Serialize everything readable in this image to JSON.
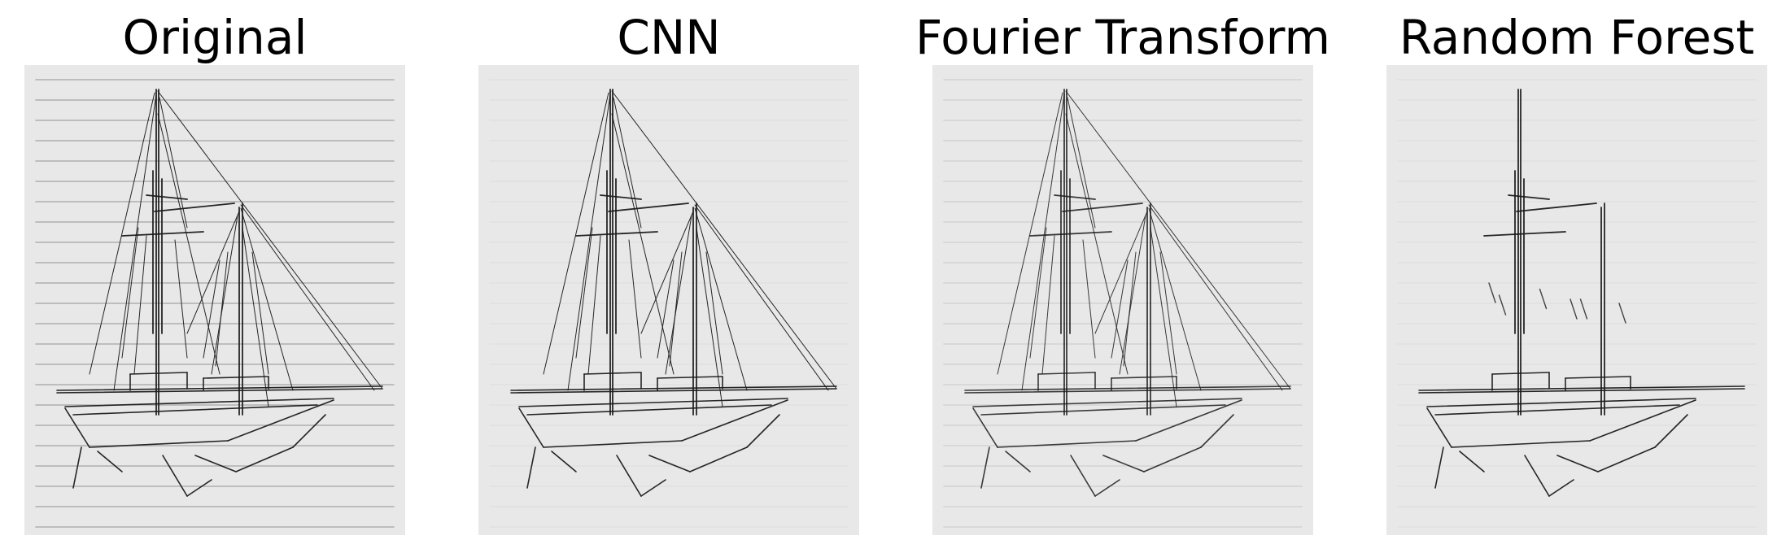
{
  "panels": [
    {
      "title": "Original",
      "variant": "original"
    },
    {
      "title": "CNN",
      "variant": "cnn"
    },
    {
      "title": "Fourier Transform",
      "variant": "fourier"
    },
    {
      "title": "Random Forest",
      "variant": "forest"
    }
  ],
  "colors": {
    "background": "#ffffff",
    "paper": "#e8e8e8",
    "ink": "#1a1a1a",
    "ruled_line": "#a8a8a8",
    "title_text": "#000000"
  },
  "icons": [
    "sailboat-sketch"
  ]
}
